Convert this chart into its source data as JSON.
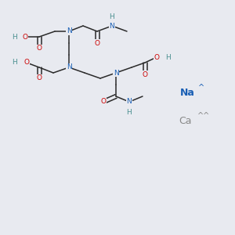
{
  "bg_color": "#e8eaf0",
  "atom_colors": {
    "N": "#1a5fb4",
    "O": "#cc0000",
    "H": "#4a9090",
    "C": "#222222",
    "Na": "#1a5fb4",
    "Ca": "#888888"
  },
  "figsize": [
    3.0,
    3.0
  ],
  "dpi": 100
}
